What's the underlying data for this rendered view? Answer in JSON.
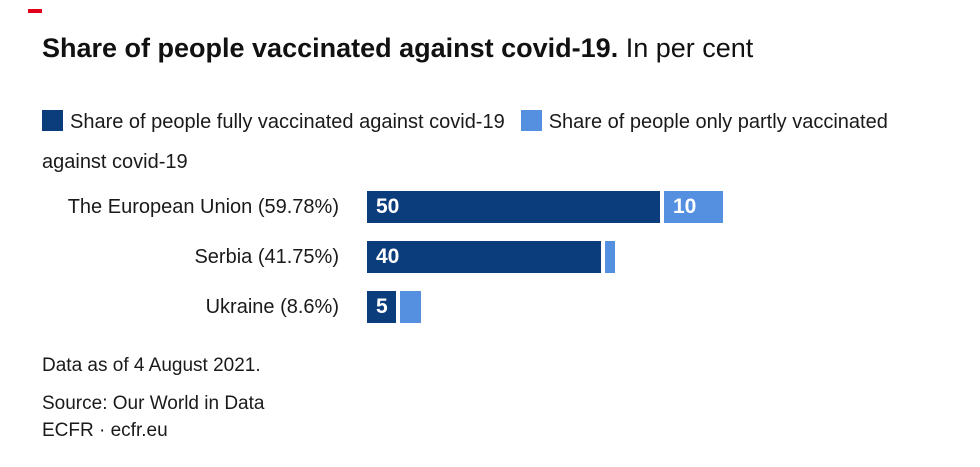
{
  "brand": {
    "dash_color": "#e0001b"
  },
  "title": {
    "bold": "Share of people vaccinated against covid-19.",
    "regular": "In per cent"
  },
  "legend": {
    "items": [
      {
        "label": "Share of people fully vaccinated against covid-19",
        "color": "#0b3d7c"
      },
      {
        "label": "Share of people only partly vaccinated against covid-19",
        "label_line1": "Share of people only partly vaccinated",
        "label_line2": "against covid-19",
        "color": "#5590e0"
      }
    ]
  },
  "chart_data": {
    "type": "bar",
    "orientation": "horizontal",
    "stacked": true,
    "title": "Share of people vaccinated against covid-19. In per cent",
    "categories": [
      "The European Union (59.78%)",
      "Serbia (41.75%)",
      "Ukraine (8.6%)"
    ],
    "series": [
      {
        "name": "Share of people fully vaccinated against covid-19",
        "color": "#0b3d7c",
        "values": [
          50,
          40,
          5
        ],
        "value_labels": [
          "50",
          "40",
          "5"
        ]
      },
      {
        "name": "Share of people only partly vaccinated against covid-19",
        "color": "#5590e0",
        "values": [
          10,
          1.75,
          3.6
        ],
        "value_labels": [
          "10",
          "",
          ""
        ]
      }
    ],
    "totals": [
      59.78,
      41.75,
      8.6
    ],
    "xlim": [
      0,
      100
    ],
    "axis_hidden": true,
    "legend_position": "top",
    "grid": false
  },
  "footer": {
    "data_as_of": "Data as of 4 August 2021.",
    "source": "Source: Our World in Data",
    "credit": "ECFR · ecfr.eu"
  }
}
